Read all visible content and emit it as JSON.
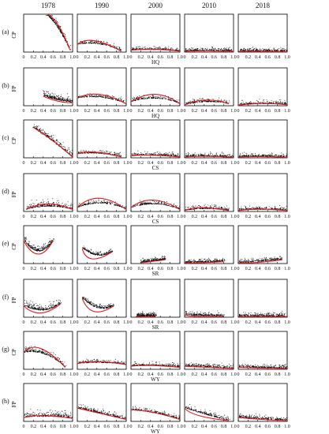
{
  "chart_data": {
    "type": "scatter",
    "columns": [
      "1978",
      "1990",
      "2000",
      "2010",
      "2018"
    ],
    "rows": [
      {
        "letter": "(a)",
        "ylabel": "CP",
        "xlabel": "HQ"
      },
      {
        "letter": "(b)",
        "ylabel": "FP",
        "xlabel": "HQ"
      },
      {
        "letter": "(c)",
        "ylabel": "CP",
        "xlabel": "CS"
      },
      {
        "letter": "(d)",
        "ylabel": "FP",
        "xlabel": "CS"
      },
      {
        "letter": "(e)",
        "ylabel": "CP",
        "xlabel": "SR"
      },
      {
        "letter": "(f)",
        "ylabel": "FP",
        "xlabel": "SR"
      },
      {
        "letter": "(g)",
        "ylabel": "CP",
        "xlabel": "WY"
      },
      {
        "letter": "(h)",
        "ylabel": "FP",
        "xlabel": "WY"
      }
    ],
    "x_ticks": [
      "0",
      "0.2",
      "0.4",
      "0.6",
      "0.8",
      "1.0"
    ],
    "xlim": [
      0,
      1
    ],
    "ylim": [
      0,
      1
    ],
    "colors": {
      "points": "#000000",
      "fit": "#e8191f"
    },
    "fit_curves": [
      [
        [
          [
            0.48,
            1.0
          ],
          [
            0.7,
            0.72
          ],
          [
            0.95,
            0.05
          ]
        ],
        [
          [
            0,
            0.2
          ],
          [
            0.35,
            0.3
          ],
          [
            0.9,
            0.02
          ]
        ],
        [
          [
            0,
            0.05
          ],
          [
            0.5,
            0.07
          ],
          [
            1,
            0.02
          ]
        ],
        [
          [
            0,
            0.02
          ],
          [
            0.5,
            0.03
          ],
          [
            1,
            0.01
          ]
        ],
        [
          [
            0,
            0.02
          ],
          [
            0.5,
            0.02
          ],
          [
            1,
            0.01
          ]
        ]
      ],
      [
        [
          [
            0.4,
            0.25
          ],
          [
            0.7,
            0.12
          ],
          [
            1,
            0.08
          ]
        ],
        [
          [
            0,
            0.2
          ],
          [
            0.45,
            0.3
          ],
          [
            1,
            0.05
          ]
        ],
        [
          [
            0,
            0.1
          ],
          [
            0.5,
            0.3
          ],
          [
            1,
            0.05
          ]
        ],
        [
          [
            0,
            0.02
          ],
          [
            0.45,
            0.15
          ],
          [
            0.9,
            0.05
          ]
        ],
        [
          [
            0,
            0.01
          ],
          [
            0.5,
            0.06
          ],
          [
            1,
            0.02
          ]
        ]
      ],
      [
        [
          [
            0.2,
            0.8
          ],
          [
            0.6,
            0.45
          ],
          [
            1,
            0.02
          ]
        ],
        [
          [
            0,
            0.1
          ],
          [
            0.35,
            0.15
          ],
          [
            0.9,
            0.02
          ]
        ],
        [
          [
            0,
            0.05
          ],
          [
            0.4,
            0.07
          ],
          [
            1,
            0.02
          ]
        ],
        [
          [
            0,
            0.02
          ],
          [
            0.5,
            0.04
          ],
          [
            1,
            0.01
          ]
        ],
        [
          [
            0,
            0.02
          ],
          [
            0.5,
            0.03
          ],
          [
            1,
            0.01
          ]
        ]
      ],
      [
        [
          [
            0.05,
            0.05
          ],
          [
            0.5,
            0.2
          ],
          [
            1,
            0.05
          ]
        ],
        [
          [
            0,
            0.1
          ],
          [
            0.45,
            0.35
          ],
          [
            1,
            0.05
          ]
        ],
        [
          [
            0,
            0.1
          ],
          [
            0.45,
            0.3
          ],
          [
            1,
            0.05
          ]
        ],
        [
          [
            0,
            0.02
          ],
          [
            0.35,
            0.1
          ],
          [
            0.9,
            0.02
          ]
        ],
        [
          [
            0,
            0.02
          ],
          [
            0.45,
            0.06
          ],
          [
            1,
            0.02
          ]
        ]
      ],
      [
        [
          [
            0.0,
            0.6
          ],
          [
            0.3,
            0.05
          ],
          [
            0.6,
            0.6
          ]
        ],
        [
          [
            0.1,
            0.4
          ],
          [
            0.3,
            0.08
          ],
          [
            0.7,
            0.3
          ]
        ],
        [
          [
            0.2,
            0.02
          ],
          [
            0.4,
            0.05
          ],
          [
            0.7,
            0.1
          ]
        ],
        [
          [
            0,
            0.02
          ],
          [
            0.3,
            0.02
          ],
          [
            0.8,
            0.05
          ]
        ],
        [
          [
            0,
            0.02
          ],
          [
            0.4,
            0.03
          ],
          [
            0.9,
            0.1
          ]
        ]
      ],
      [
        [
          [
            0.0,
            0.3
          ],
          [
            0.35,
            0.03
          ],
          [
            0.75,
            0.35
          ]
        ],
        [
          [
            0.1,
            0.5
          ],
          [
            0.35,
            0.08
          ],
          [
            0.75,
            0.3
          ]
        ],
        [
          [
            0.1,
            0.02
          ],
          [
            0.25,
            0.02
          ],
          [
            0.5,
            0.02
          ]
        ],
        [
          [
            0,
            0.05
          ],
          [
            0.3,
            0.02
          ],
          [
            0.8,
            0.02
          ]
        ],
        [
          [
            0,
            0.02
          ],
          [
            0.5,
            0.02
          ],
          [
            1,
            0.02
          ]
        ]
      ],
      [
        [
          [
            0.0,
            0.45
          ],
          [
            0.35,
            0.55
          ],
          [
            0.85,
            0.05
          ]
        ],
        [
          [
            0,
            0.15
          ],
          [
            0.45,
            0.2
          ],
          [
            1,
            0.12
          ]
        ],
        [
          [
            0,
            0.08
          ],
          [
            0.4,
            0.1
          ],
          [
            1,
            0.05
          ]
        ],
        [
          [
            0,
            0.08
          ],
          [
            0.5,
            0.05
          ],
          [
            1,
            0.02
          ]
        ],
        [
          [
            0,
            0.05
          ],
          [
            0.5,
            0.03
          ],
          [
            1,
            0.02
          ]
        ]
      ],
      [
        [
          [
            0,
            0.1
          ],
          [
            0.4,
            0.15
          ],
          [
            1,
            0.08
          ]
        ],
        [
          [
            0,
            0.35
          ],
          [
            0.5,
            0.2
          ],
          [
            1,
            0.05
          ]
        ],
        [
          [
            0,
            0.3
          ],
          [
            0.4,
            0.25
          ],
          [
            1,
            0.05
          ]
        ],
        [
          [
            0,
            0.35
          ],
          [
            0.3,
            0.15
          ],
          [
            0.9,
            0.02
          ]
        ],
        [
          [
            0,
            0.1
          ],
          [
            0.5,
            0.05
          ],
          [
            1,
            0.02
          ]
        ]
      ]
    ]
  }
}
